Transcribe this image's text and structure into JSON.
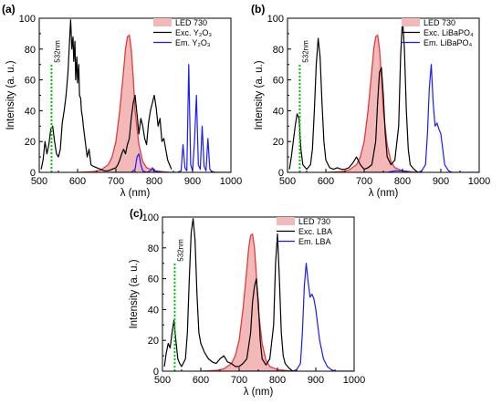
{
  "chart_data": [
    {
      "type": "line",
      "panel_label": "(a)",
      "xlabel": "λ (nm)",
      "ylabel": "Intensity (a. u.)",
      "xlim": [
        500,
        1000
      ],
      "ylim": [
        0,
        100
      ],
      "xticks": [
        500,
        600,
        700,
        800,
        900,
        1000
      ],
      "yticks": [
        0,
        20,
        40,
        60,
        80,
        100
      ],
      "laser_line": {
        "x": 532,
        "label": "532nm",
        "color": "#00cc00"
      },
      "legend_position": "top-right",
      "series": [
        {
          "name": "LED 730",
          "type": "area",
          "color": "#e23b3b",
          "fill": "#f3b9b9",
          "x": [
            600,
            640,
            660,
            680,
            690,
            700,
            710,
            720,
            725,
            730,
            735,
            740,
            745,
            750,
            760,
            770,
            780,
            800,
            840
          ],
          "y": [
            0,
            0.5,
            1.5,
            5,
            10,
            20,
            40,
            66,
            80,
            88,
            89,
            80,
            62,
            40,
            18,
            7,
            3,
            1,
            0
          ]
        },
        {
          "name": "Exc. Y₂O₃",
          "type": "line",
          "color": "#000000",
          "x": [
            505,
            510,
            515,
            520,
            525,
            530,
            535,
            540,
            545,
            550,
            555,
            560,
            565,
            570,
            575,
            580,
            582,
            585,
            588,
            590,
            593,
            595,
            598,
            600,
            603,
            605,
            608,
            610,
            613,
            615,
            620,
            625,
            630,
            635,
            640,
            650,
            660,
            670,
            680,
            690,
            700,
            705,
            710,
            715,
            720,
            725,
            730,
            735,
            740,
            745,
            750,
            755,
            760,
            765,
            770,
            775,
            780,
            785,
            790,
            795,
            800,
            805,
            810,
            815,
            820,
            825,
            830,
            835,
            840,
            845
          ],
          "y": [
            2,
            8,
            20,
            12,
            18,
            28,
            30,
            20,
            12,
            10,
            15,
            32,
            40,
            50,
            65,
            90,
            99,
            80,
            88,
            72,
            85,
            60,
            75,
            58,
            70,
            50,
            48,
            40,
            35,
            30,
            20,
            10,
            15,
            5,
            4,
            3,
            2,
            1,
            1,
            2,
            3,
            5,
            8,
            12,
            15,
            12,
            18,
            22,
            35,
            45,
            50,
            38,
            25,
            35,
            30,
            22,
            18,
            32,
            40,
            45,
            50,
            42,
            30,
            35,
            20,
            22,
            15,
            8,
            5,
            2
          ]
        },
        {
          "name": "Em. Y₂O₃",
          "type": "line",
          "color": "#1a1aff",
          "x": [
            700,
            740,
            750,
            755,
            760,
            765,
            770,
            780,
            790,
            795,
            800,
            820,
            860,
            870,
            875,
            880,
            885,
            890,
            895,
            900,
            905,
            910,
            915,
            920,
            925,
            930,
            935,
            940,
            945,
            950,
            960,
            1000
          ],
          "y": [
            0,
            0,
            2,
            10,
            12,
            5,
            1,
            0,
            1,
            3,
            1,
            0,
            0,
            1,
            18,
            3,
            1,
            70,
            5,
            1,
            20,
            50,
            5,
            2,
            30,
            4,
            1,
            22,
            2,
            0.5,
            0,
            0
          ]
        }
      ]
    },
    {
      "type": "line",
      "panel_label": "(b)",
      "xlabel": "λ (nm)",
      "ylabel": "Intensity (a. u.)",
      "xlim": [
        500,
        1000
      ],
      "ylim": [
        0,
        100
      ],
      "xticks": [
        500,
        600,
        700,
        800,
        900,
        1000
      ],
      "yticks": [
        0,
        20,
        40,
        60,
        80,
        100
      ],
      "laser_line": {
        "x": 532,
        "label": "532nm",
        "color": "#00cc00"
      },
      "legend_position": "top-right",
      "series": [
        {
          "name": "LED 730",
          "type": "area",
          "color": "#e23b3b",
          "fill": "#f3b9b9",
          "x": [
            600,
            640,
            660,
            680,
            690,
            700,
            710,
            720,
            725,
            730,
            735,
            740,
            745,
            750,
            760,
            770,
            780,
            800,
            840
          ],
          "y": [
            0,
            0.5,
            1.5,
            5,
            10,
            20,
            40,
            66,
            80,
            88,
            89,
            80,
            62,
            40,
            18,
            7,
            3,
            1,
            0
          ]
        },
        {
          "name": "Exc. LiBaPO₄",
          "type": "line",
          "color": "#000000",
          "x": [
            505,
            510,
            515,
            520,
            525,
            530,
            535,
            540,
            550,
            560,
            565,
            570,
            575,
            580,
            585,
            590,
            595,
            600,
            610,
            620,
            630,
            640,
            650,
            660,
            670,
            680,
            690,
            700,
            710,
            720,
            730,
            735,
            740,
            745,
            750,
            755,
            760,
            770,
            780,
            790,
            795,
            800,
            805,
            810,
            815,
            820,
            830,
            840
          ],
          "y": [
            2,
            10,
            20,
            30,
            38,
            35,
            15,
            5,
            2,
            5,
            15,
            40,
            70,
            87,
            75,
            45,
            20,
            8,
            3,
            2,
            3,
            2,
            2,
            3,
            6,
            10,
            5,
            2,
            3,
            5,
            20,
            45,
            65,
            68,
            50,
            25,
            10,
            5,
            8,
            30,
            75,
            100,
            80,
            40,
            15,
            5,
            2,
            0
          ]
        },
        {
          "name": "Em. LiBaPO₄",
          "type": "line",
          "color": "#1a1aff",
          "x": [
            700,
            740,
            760,
            780,
            800,
            820,
            840,
            850,
            860,
            865,
            870,
            875,
            880,
            885,
            890,
            895,
            900,
            905,
            910,
            920,
            930,
            1000
          ],
          "y": [
            0,
            0,
            0,
            1,
            1,
            0,
            0,
            1,
            5,
            25,
            55,
            70,
            45,
            30,
            32,
            28,
            25,
            15,
            5,
            1,
            0,
            0
          ]
        }
      ]
    },
    {
      "type": "line",
      "panel_label": "(c)",
      "xlabel": "λ (nm)",
      "ylabel": "Intensity (a. u.)",
      "xlim": [
        500,
        1000
      ],
      "ylim": [
        0,
        100
      ],
      "xticks": [
        500,
        600,
        700,
        800,
        900,
        1000
      ],
      "yticks": [
        0,
        20,
        40,
        60,
        80,
        100
      ],
      "laser_line": {
        "x": 532,
        "label": "532nm",
        "color": "#00cc00"
      },
      "legend_position": "top-right",
      "series": [
        {
          "name": "LED 730",
          "type": "area",
          "color": "#e23b3b",
          "fill": "#f3b9b9",
          "x": [
            600,
            640,
            660,
            680,
            690,
            700,
            710,
            720,
            725,
            730,
            735,
            740,
            745,
            750,
            760,
            770,
            780,
            800,
            840
          ],
          "y": [
            0,
            0.5,
            1.5,
            5,
            10,
            20,
            40,
            66,
            80,
            88,
            89,
            80,
            62,
            40,
            18,
            7,
            3,
            1,
            0
          ]
        },
        {
          "name": "Exc. LBA",
          "type": "line",
          "color": "#000000",
          "x": [
            505,
            510,
            515,
            520,
            525,
            530,
            535,
            540,
            545,
            550,
            560,
            565,
            570,
            575,
            580,
            585,
            590,
            595,
            600,
            610,
            620,
            630,
            640,
            650,
            660,
            670,
            680,
            690,
            700,
            710,
            720,
            730,
            735,
            740,
            745,
            750,
            755,
            760,
            770,
            780,
            790,
            795,
            800,
            805,
            810,
            815,
            820,
            830,
            840
          ],
          "y": [
            3,
            12,
            18,
            15,
            25,
            33,
            20,
            8,
            5,
            3,
            8,
            25,
            60,
            90,
            99,
            85,
            50,
            25,
            18,
            12,
            8,
            6,
            5,
            8,
            10,
            6,
            5,
            3,
            3,
            5,
            8,
            25,
            45,
            55,
            60,
            45,
            20,
            8,
            4,
            8,
            30,
            70,
            89,
            60,
            25,
            10,
            5,
            2,
            0
          ]
        },
        {
          "name": "Em. LBA",
          "type": "line",
          "color": "#1a1aff",
          "x": [
            700,
            740,
            760,
            780,
            800,
            820,
            840,
            850,
            860,
            865,
            870,
            875,
            880,
            885,
            890,
            895,
            900,
            905,
            910,
            920,
            930,
            940,
            950,
            1000
          ],
          "y": [
            0,
            0,
            0,
            0,
            0,
            0,
            0,
            1,
            5,
            25,
            55,
            70,
            58,
            48,
            50,
            47,
            40,
            30,
            20,
            8,
            3,
            1,
            0,
            0
          ]
        }
      ]
    }
  ]
}
